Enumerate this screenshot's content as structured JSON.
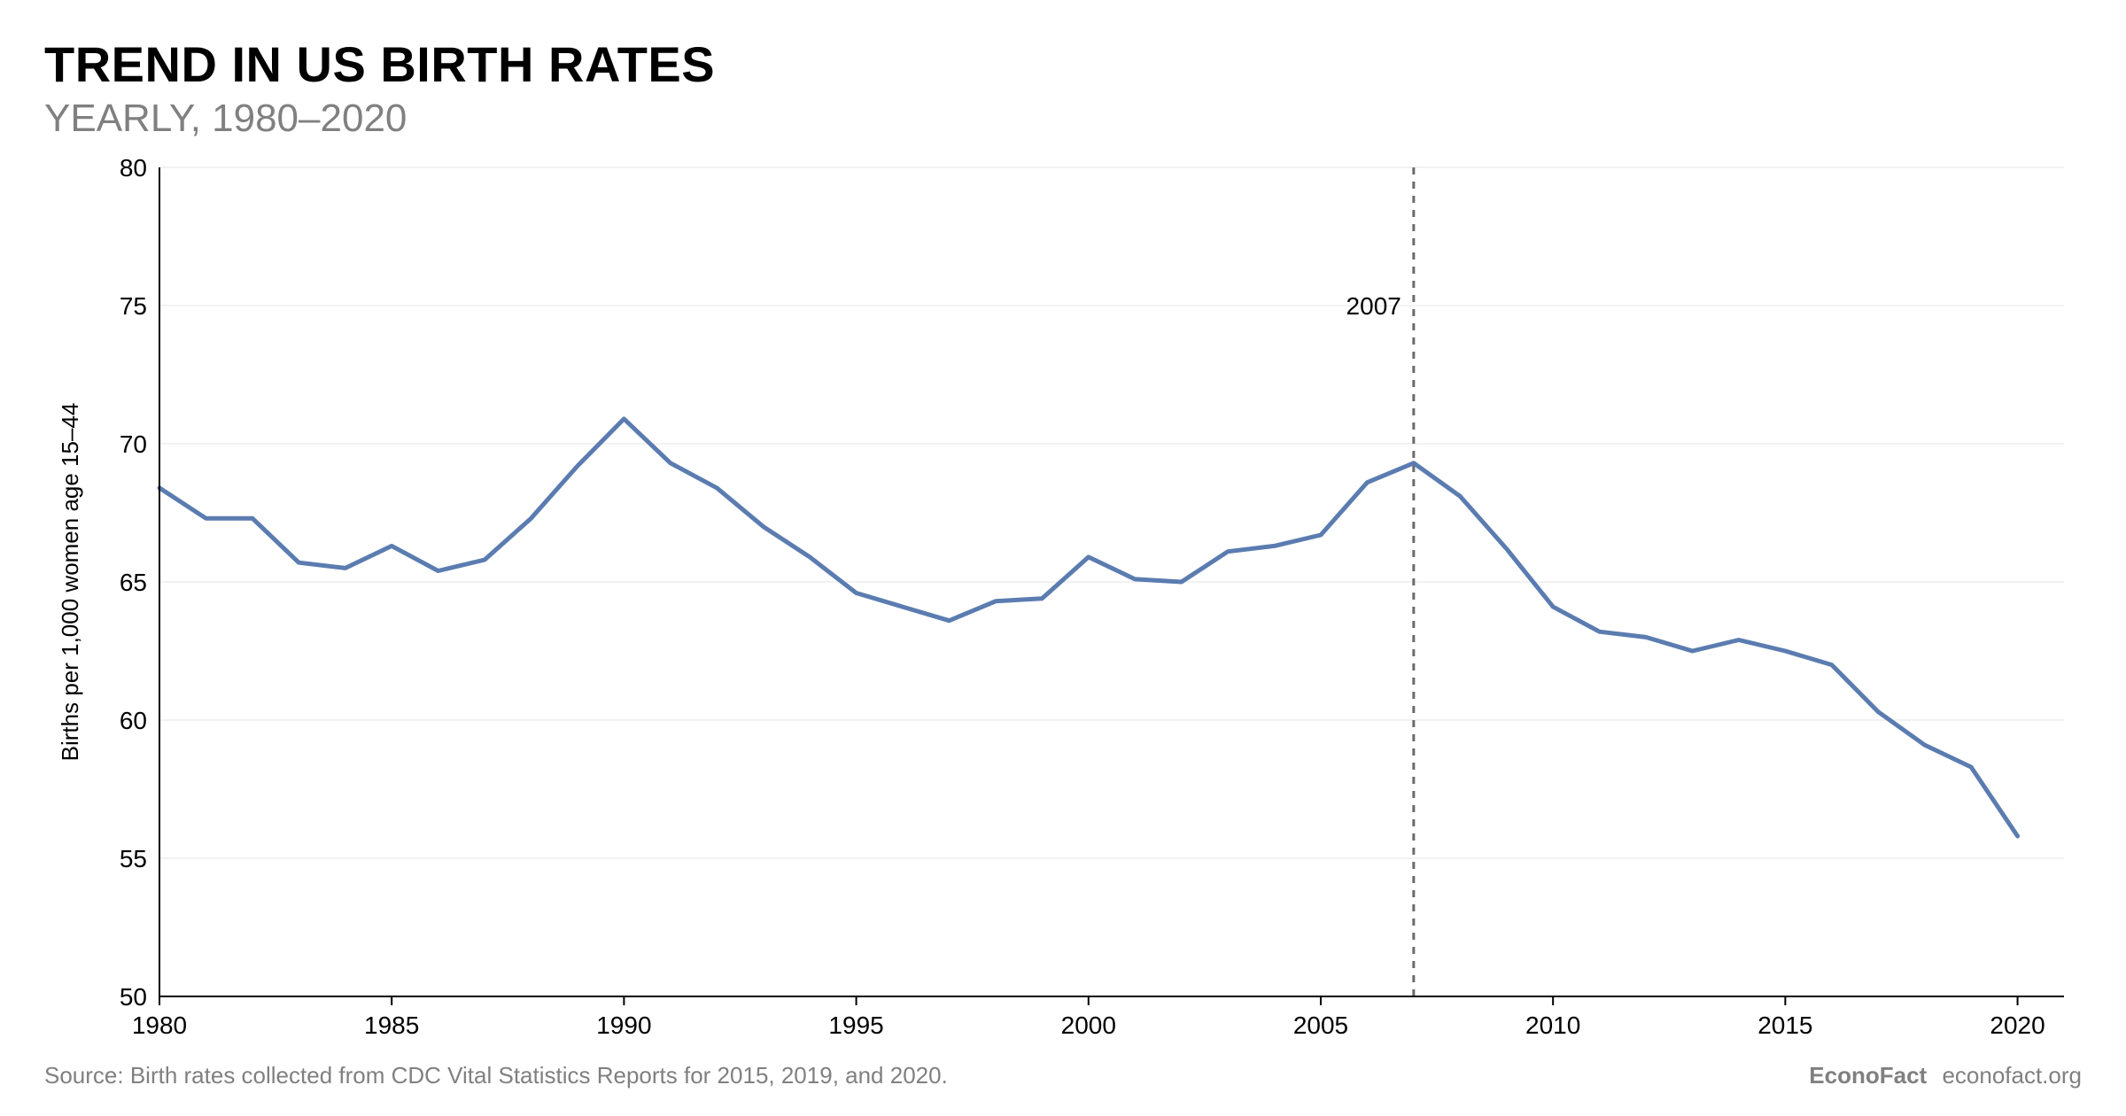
{
  "title": "TREND IN US BIRTH RATES",
  "subtitle": "YEARLY, 1980–2020",
  "footer": {
    "source": "Source: Birth rates collected from CDC Vital Statistics Reports for 2015, 2019, and 2020.",
    "credit_name": "EconoFact",
    "credit_url": "econofact.org"
  },
  "chart": {
    "type": "line",
    "xlim": [
      1980,
      2021
    ],
    "ylim": [
      50,
      80
    ],
    "xtick_start": 1980,
    "xtick_step": 5,
    "xtick_end": 2020,
    "ytick_start": 50,
    "ytick_step": 5,
    "ytick_end": 80,
    "ylabel": "Births per 1,000 women age 15–44",
    "background_color": "#ffffff",
    "grid_color": "#e6e6e6",
    "grid_width": 1,
    "axis_color": "#000000",
    "axis_width": 2,
    "tick_font_size": 28,
    "tick_color": "#000000",
    "ylabel_font_size": 26,
    "ylabel_color": "#000000",
    "line_color": "#5b7cb0",
    "line_width": 5,
    "vline": {
      "x": 2007,
      "color": "#6b6b6b",
      "width": 3,
      "dash": "8,8",
      "label": "2007",
      "label_font_size": 28,
      "label_color": "#000000"
    },
    "series": {
      "years": [
        1980,
        1981,
        1982,
        1983,
        1984,
        1985,
        1986,
        1987,
        1988,
        1989,
        1990,
        1991,
        1992,
        1993,
        1994,
        1995,
        1996,
        1997,
        1998,
        1999,
        2000,
        2001,
        2002,
        2003,
        2004,
        2005,
        2006,
        2007,
        2008,
        2009,
        2010,
        2011,
        2012,
        2013,
        2014,
        2015,
        2016,
        2017,
        2018,
        2019,
        2020
      ],
      "values": [
        68.4,
        67.3,
        67.3,
        65.7,
        65.5,
        66.3,
        65.4,
        65.8,
        67.3,
        69.2,
        70.9,
        69.3,
        68.4,
        67.0,
        65.9,
        64.6,
        64.1,
        63.6,
        64.3,
        64.4,
        65.9,
        65.1,
        65.0,
        66.1,
        66.3,
        66.7,
        68.6,
        69.3,
        68.1,
        66.2,
        64.1,
        63.2,
        63.0,
        62.5,
        62.9,
        62.5,
        62.0,
        60.3,
        59.1,
        58.3,
        55.8
      ]
    }
  }
}
